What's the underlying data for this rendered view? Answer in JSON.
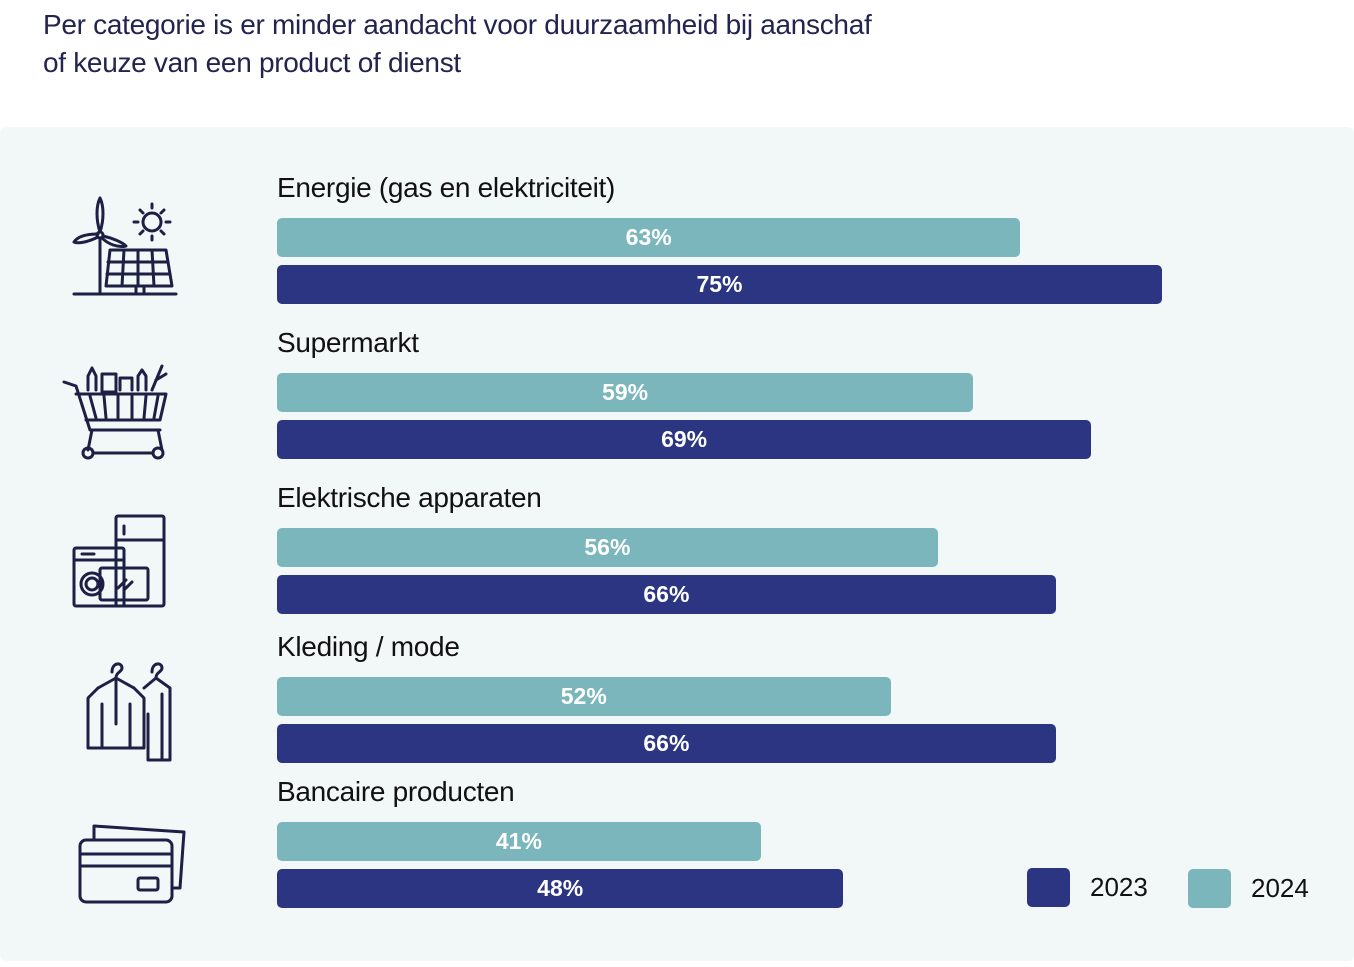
{
  "title": "Per categorie is er minder aandacht voor duurzaamheid bij aanschaf of keuze van een product of dienst",
  "title_lines": [
    "Per categorie is er minder aandacht voor duurzaamheid bij aanschaf",
    "of keuze van een product of dienst"
  ],
  "colors": {
    "2024": "#7bb6bd",
    "2023": "#2b3582",
    "icon": "#1e1f45"
  },
  "chart_data": {
    "type": "bar",
    "orientation": "horizontal",
    "categories": [
      "Energie (gas en elektriciteit)",
      "Supermarkt",
      "Elektrische apparaten",
      "Kleding / mode",
      "Bancaire producten"
    ],
    "category_icons": [
      "wind-solar-icon",
      "shopping-cart-icon",
      "appliances-icon",
      "clothing-rack-icon",
      "bank-card-icon"
    ],
    "series": [
      {
        "name": "2024",
        "values": [
          63,
          59,
          56,
          52,
          41
        ],
        "labels": [
          "63%",
          "59%",
          "56%",
          "52%",
          "41%"
        ]
      },
      {
        "name": "2023",
        "values": [
          75,
          69,
          66,
          66,
          48
        ],
        "labels": [
          "75%",
          "69%",
          "66%",
          "66%",
          "48%"
        ]
      }
    ],
    "unit": "%",
    "legend": {
      "placement": "bottom-right",
      "entries": [
        "2023",
        "2024"
      ]
    },
    "grid": false
  }
}
